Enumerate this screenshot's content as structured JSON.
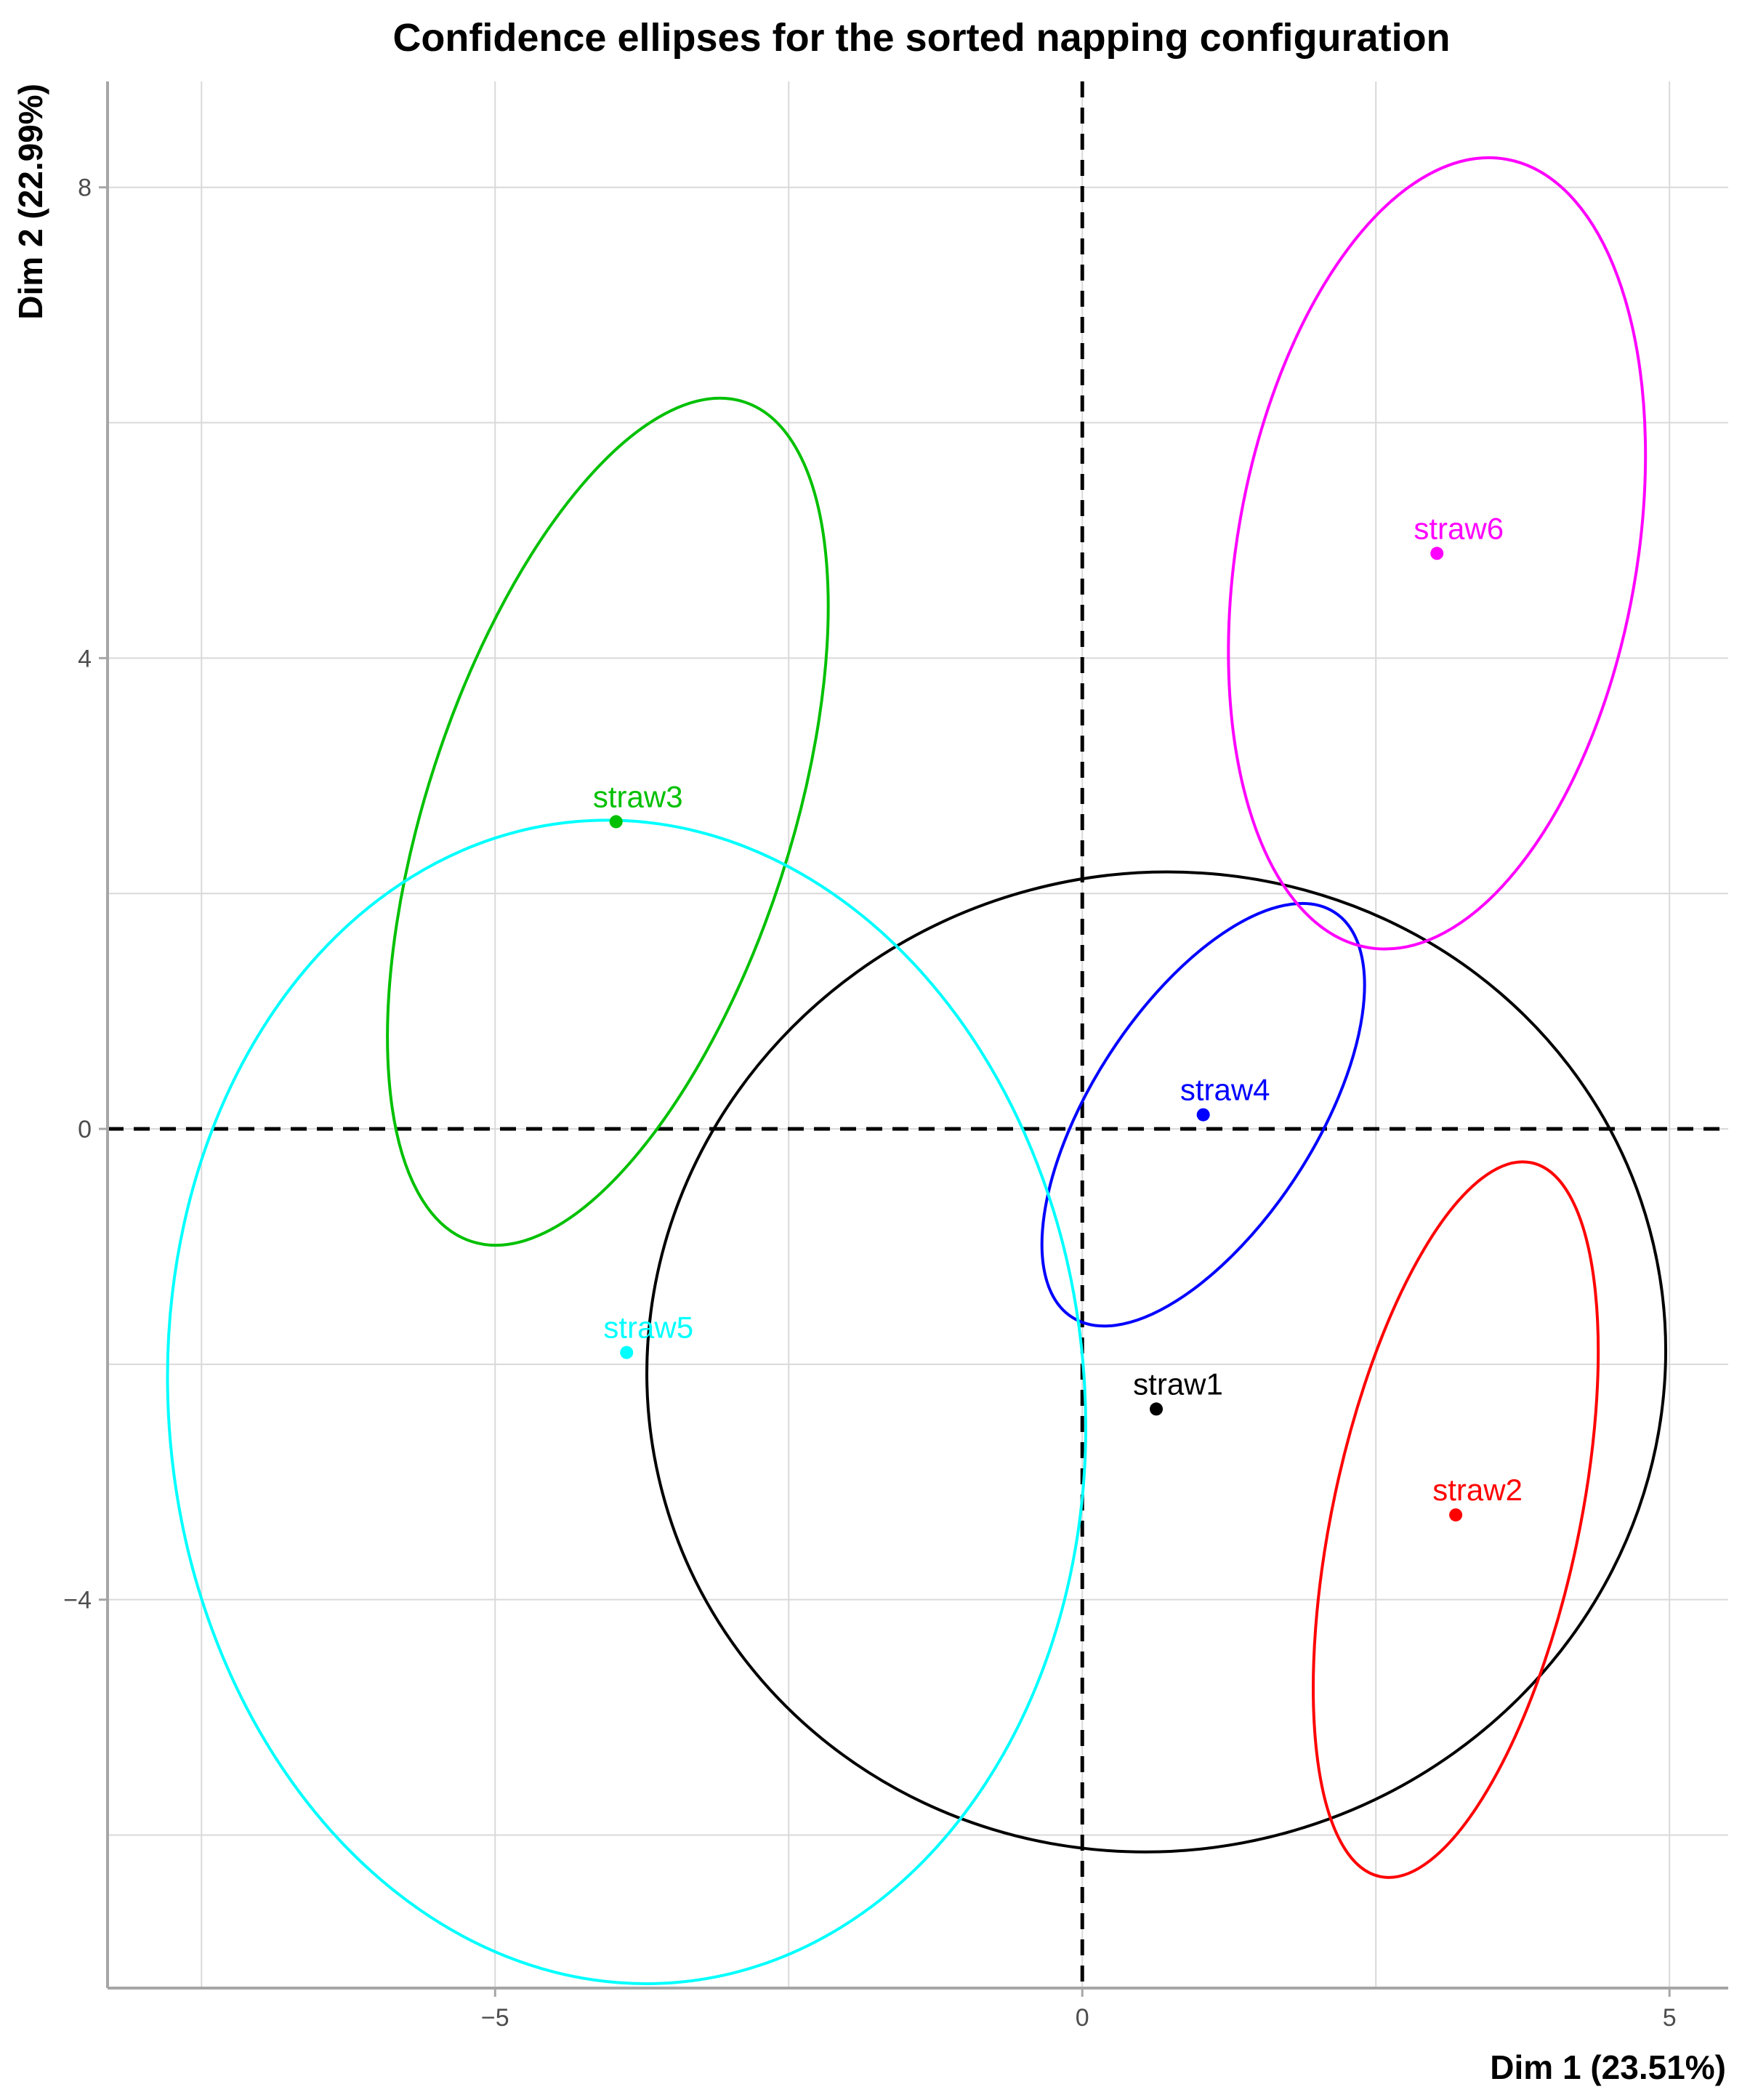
{
  "chart_data": {
    "type": "scatter",
    "title": "Confidence ellipses for the sorted napping configuration",
    "xlabel": "Dim 1 (23.51%)",
    "ylabel": "Dim 2 (22.99%)",
    "xlim": [
      -8.3,
      5.5
    ],
    "ylim": [
      -7.3,
      8.9
    ],
    "x_ticks": [
      -5,
      0,
      5
    ],
    "x_tick_labels": [
      "−5",
      "0",
      "5"
    ],
    "y_ticks": [
      -4,
      0,
      4,
      8
    ],
    "y_tick_labels": [
      "−4",
      "0",
      "4",
      "8"
    ],
    "x_grid_minor": [
      -7.5,
      -2.5,
      2.5
    ],
    "y_grid_minor": [
      -6,
      -2,
      2,
      6
    ],
    "grid": true,
    "reference_lines": {
      "x": 0,
      "y": 0,
      "style": "dashed"
    },
    "series": [
      {
        "name": "straw1",
        "color": "#000000",
        "point": [
          0.63,
          -2.38
        ],
        "ellipse": {
          "center": [
            0.63,
            -1.98
          ],
          "rx": 4.35,
          "ry": 4.15,
          "angle_deg": -15
        }
      },
      {
        "name": "straw2",
        "color": "#ff0000",
        "point": [
          3.18,
          -3.28
        ],
        "ellipse": {
          "center": [
            3.18,
            -3.32
          ],
          "rx": 1.05,
          "ry": 3.1,
          "angle_deg": 12
        }
      },
      {
        "name": "straw3",
        "color": "#00c000",
        "point": [
          -3.97,
          2.61
        ],
        "ellipse": {
          "center": [
            -4.04,
            2.61
          ],
          "rx": 1.55,
          "ry": 3.75,
          "angle_deg": 18
        }
      },
      {
        "name": "straw4",
        "color": "#0000ff",
        "point": [
          1.03,
          0.12
        ],
        "ellipse": {
          "center": [
            1.03,
            0.12
          ],
          "rx": 0.95,
          "ry": 2.05,
          "angle_deg": 33
        }
      },
      {
        "name": "straw5",
        "color": "#00ffff",
        "point": [
          -3.88,
          -1.9
        ],
        "ellipse": {
          "center": [
            -3.88,
            -2.32
          ],
          "rx": 3.9,
          "ry": 4.95,
          "angle_deg": -5
        }
      },
      {
        "name": "straw6",
        "color": "#ff00ff",
        "point": [
          3.02,
          4.89
        ],
        "ellipse": {
          "center": [
            3.02,
            4.89
          ],
          "rx": 1.7,
          "ry": 3.4,
          "angle_deg": 10
        }
      }
    ]
  }
}
